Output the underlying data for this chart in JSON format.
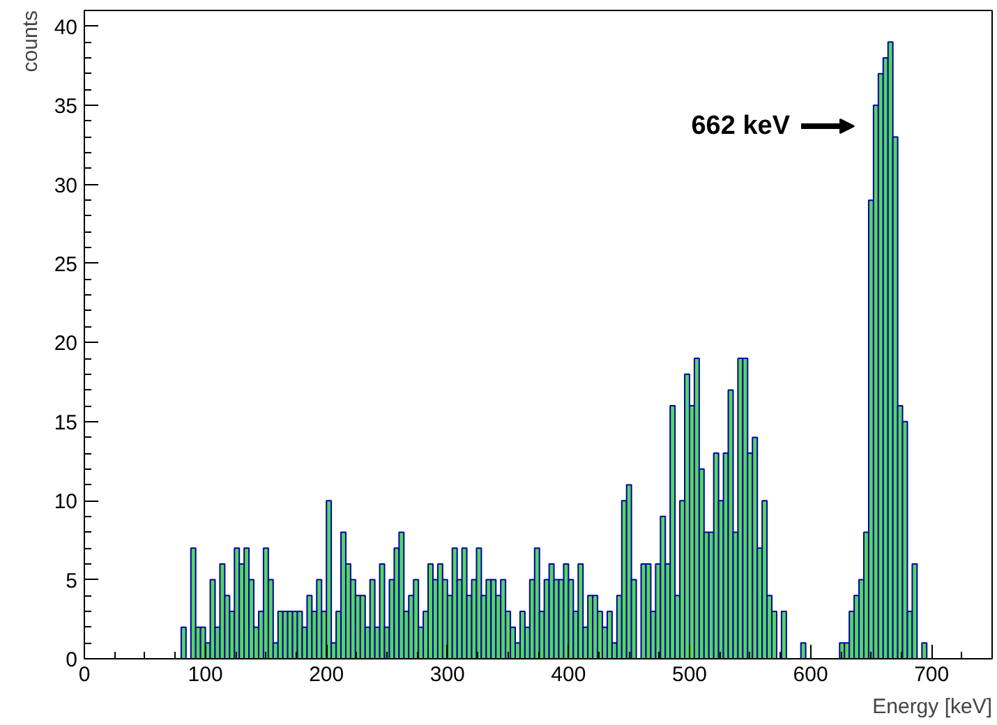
{
  "chart_data": {
    "type": "histogram",
    "xlabel": "Energy [keV]",
    "ylabel": "counts",
    "bins": [
      80,
      84,
      88,
      92,
      96,
      100,
      104,
      108,
      112,
      116,
      120,
      124,
      128,
      132,
      136,
      140,
      144,
      148,
      152,
      156,
      160,
      164,
      168,
      172,
      176,
      180,
      184,
      188,
      192,
      196,
      200,
      204,
      208,
      212,
      216,
      220,
      224,
      228,
      232,
      236,
      240,
      244,
      248,
      252,
      256,
      260,
      264,
      268,
      272,
      276,
      280,
      284,
      288,
      292,
      296,
      300,
      304,
      308,
      312,
      316,
      320,
      324,
      328,
      332,
      336,
      340,
      344,
      348,
      352,
      356,
      360,
      364,
      368,
      372,
      376,
      380,
      384,
      388,
      392,
      396,
      400,
      404,
      408,
      412,
      416,
      420,
      424,
      428,
      432,
      436,
      440,
      444,
      448,
      452,
      456,
      460,
      464,
      468,
      472,
      476,
      480,
      484,
      488,
      492,
      496,
      500,
      504,
      508,
      512,
      516,
      520,
      524,
      528,
      532,
      536,
      540,
      544,
      548,
      552,
      556,
      560,
      564,
      568,
      572,
      576,
      580,
      584,
      588,
      592,
      596,
      600,
      604,
      608,
      612,
      616,
      620,
      624,
      628,
      632,
      636,
      640,
      644,
      648,
      652,
      656,
      660,
      664,
      668,
      672,
      676,
      680,
      684,
      688,
      692,
      696
    ],
    "values": [
      2,
      0,
      7,
      2,
      2,
      1,
      5,
      2,
      6,
      4,
      3,
      7,
      6,
      7,
      5,
      2,
      3,
      7,
      5,
      1,
      3,
      3,
      3,
      3,
      3,
      2,
      4,
      3,
      5,
      3,
      10,
      1,
      3,
      8,
      6,
      5,
      4,
      4,
      2,
      5,
      2,
      6,
      2,
      5,
      7,
      8,
      3,
      4,
      5,
      2,
      3,
      6,
      5,
      6,
      5,
      4,
      7,
      5,
      7,
      4,
      5,
      7,
      4,
      5,
      5,
      4,
      5,
      3,
      2,
      1,
      3,
      2,
      5,
      7,
      3,
      5,
      6,
      5,
      5,
      6,
      5,
      3,
      6,
      2,
      4,
      4,
      3,
      2,
      3,
      1,
      4,
      10,
      11,
      5,
      0,
      6,
      6,
      3,
      6,
      9,
      6,
      16,
      4,
      10,
      18,
      16,
      19,
      12,
      8,
      8,
      13,
      10,
      13,
      17,
      8,
      19,
      19,
      13,
      14,
      7,
      10,
      4,
      3,
      0,
      3,
      0,
      0,
      0,
      1,
      0,
      0,
      0,
      0,
      0,
      0,
      0,
      1,
      1,
      3,
      4,
      5,
      8,
      29,
      35,
      37,
      38,
      39,
      33,
      16,
      15,
      3,
      6,
      0,
      1
    ],
    "color": "#57d657",
    "xlim": [
      0,
      750
    ],
    "xticks": [
      0,
      100,
      200,
      300,
      400,
      500,
      600,
      700
    ],
    "ylim": [
      0,
      41
    ],
    "yticks": [
      0,
      5,
      10,
      15,
      20,
      25,
      30,
      35,
      40
    ],
    "grid": false,
    "annotations": [
      "662 keV"
    ]
  }
}
